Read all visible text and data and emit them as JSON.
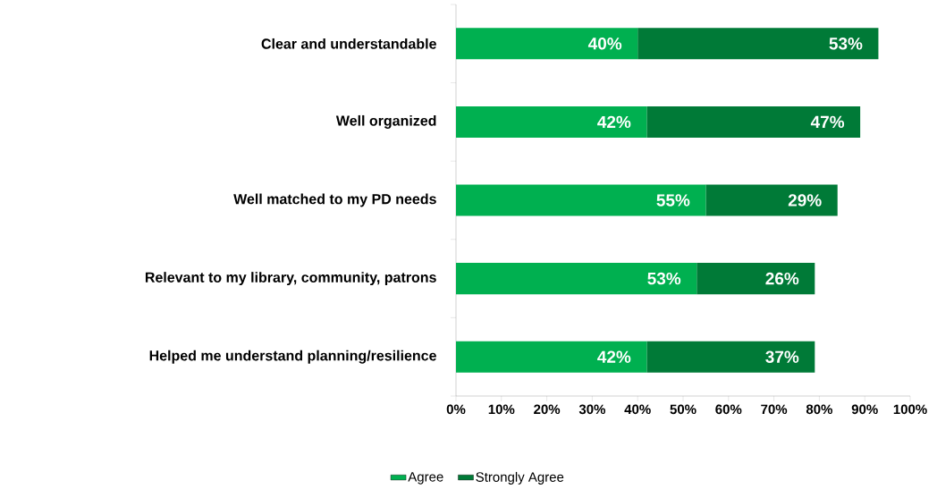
{
  "chart_data": {
    "type": "bar",
    "orientation": "horizontal",
    "stacked": true,
    "categories": [
      "Clear and understandable",
      "Well organized",
      "Well matched to my PD needs",
      "Relevant to my library, community, patrons",
      "Helped me understand planning/resilience"
    ],
    "series": [
      {
        "name": "Agree",
        "color": "#00b050",
        "values": [
          40,
          42,
          55,
          53,
          42
        ],
        "value_labels": [
          "40%",
          "42%",
          "55%",
          "53%",
          "42%"
        ]
      },
      {
        "name": "Strongly Agree",
        "color": "#007a37",
        "values": [
          53,
          47,
          29,
          26,
          37
        ],
        "value_labels": [
          "53%",
          "47%",
          "29%",
          "26%",
          "37%"
        ]
      }
    ],
    "xlim": [
      0,
      100
    ],
    "xticks": [
      {
        "value": 0,
        "label": "0%"
      },
      {
        "value": 10,
        "label": "10%"
      },
      {
        "value": 20,
        "label": "20%"
      },
      {
        "value": 30,
        "label": "30%"
      },
      {
        "value": 40,
        "label": "40%"
      },
      {
        "value": 50,
        "label": "50%"
      },
      {
        "value": 60,
        "label": "60%"
      },
      {
        "value": 70,
        "label": "70%"
      },
      {
        "value": 80,
        "label": "80%"
      },
      {
        "value": 90,
        "label": "90%"
      },
      {
        "value": 100,
        "label": "100%"
      }
    ],
    "grid": false,
    "legend": "bottom"
  }
}
